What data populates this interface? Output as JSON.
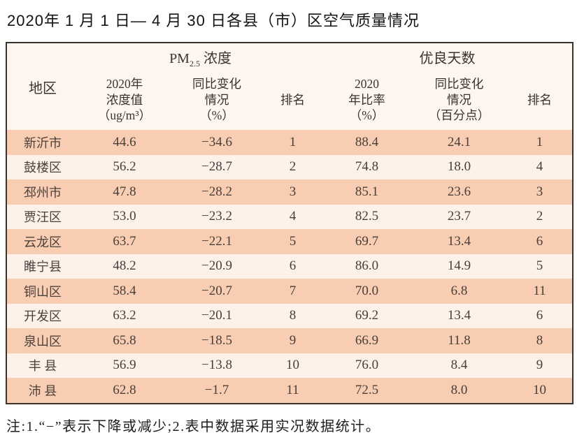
{
  "title": "2020年 1 月 1 日— 4 月 30 日各县（市）区空气质量情况",
  "table": {
    "region_header": "地区",
    "pm25_group": {
      "prefix": "PM",
      "subscript": "2.5",
      "suffix": " 浓度"
    },
    "good_days_group_label": "优良天数",
    "sub_headers": [
      "2020年\n浓度值\n（ug/m³）",
      "同比变化\n情况\n（%）",
      "排名",
      "2020\n年比率\n（%）",
      "同比变化\n情况\n（百分点）",
      "排名"
    ],
    "rows": [
      [
        "新沂市",
        "44.6",
        "−34.6",
        "1",
        "88.4",
        "24.1",
        "1"
      ],
      [
        "鼓楼区",
        "56.2",
        "−28.7",
        "2",
        "74.8",
        "18.0",
        "4"
      ],
      [
        "邳州市",
        "47.8",
        "−28.2",
        "3",
        "85.1",
        "23.6",
        "3"
      ],
      [
        "贾汪区",
        "53.0",
        "−23.2",
        "4",
        "82.5",
        "23.7",
        "2"
      ],
      [
        "云龙区",
        "63.7",
        "−22.1",
        "5",
        "69.7",
        "13.4",
        "6"
      ],
      [
        "睢宁县",
        "48.2",
        "−20.9",
        "6",
        "86.0",
        "14.9",
        "5"
      ],
      [
        "铜山区",
        "58.4",
        "−20.7",
        "7",
        "70.0",
        "6.8",
        "11"
      ],
      [
        "开发区",
        "63.2",
        "−20.1",
        "8",
        "69.2",
        "13.4",
        "6"
      ],
      [
        "泉山区",
        "65.8",
        "−18.5",
        "9",
        "66.9",
        "11.8",
        "8"
      ],
      [
        "丰 县",
        "56.9",
        "−13.8",
        "10",
        "76.0",
        "8.4",
        "9"
      ],
      [
        "沛 县",
        "62.8",
        "−1.7",
        "11",
        "72.5",
        "8.0",
        "10"
      ]
    ]
  },
  "footnote": "注:1.“−”表示下降或减少;2.表中数据采用实况数据统计。",
  "colors": {
    "row_stripe_dark": "#f9cdb2",
    "row_stripe_light": "#fdf1e9",
    "header_background": "#fdf6ee",
    "grid_border": "#3a322c",
    "table_text": "#47403a",
    "page_background": "#ffffff"
  }
}
